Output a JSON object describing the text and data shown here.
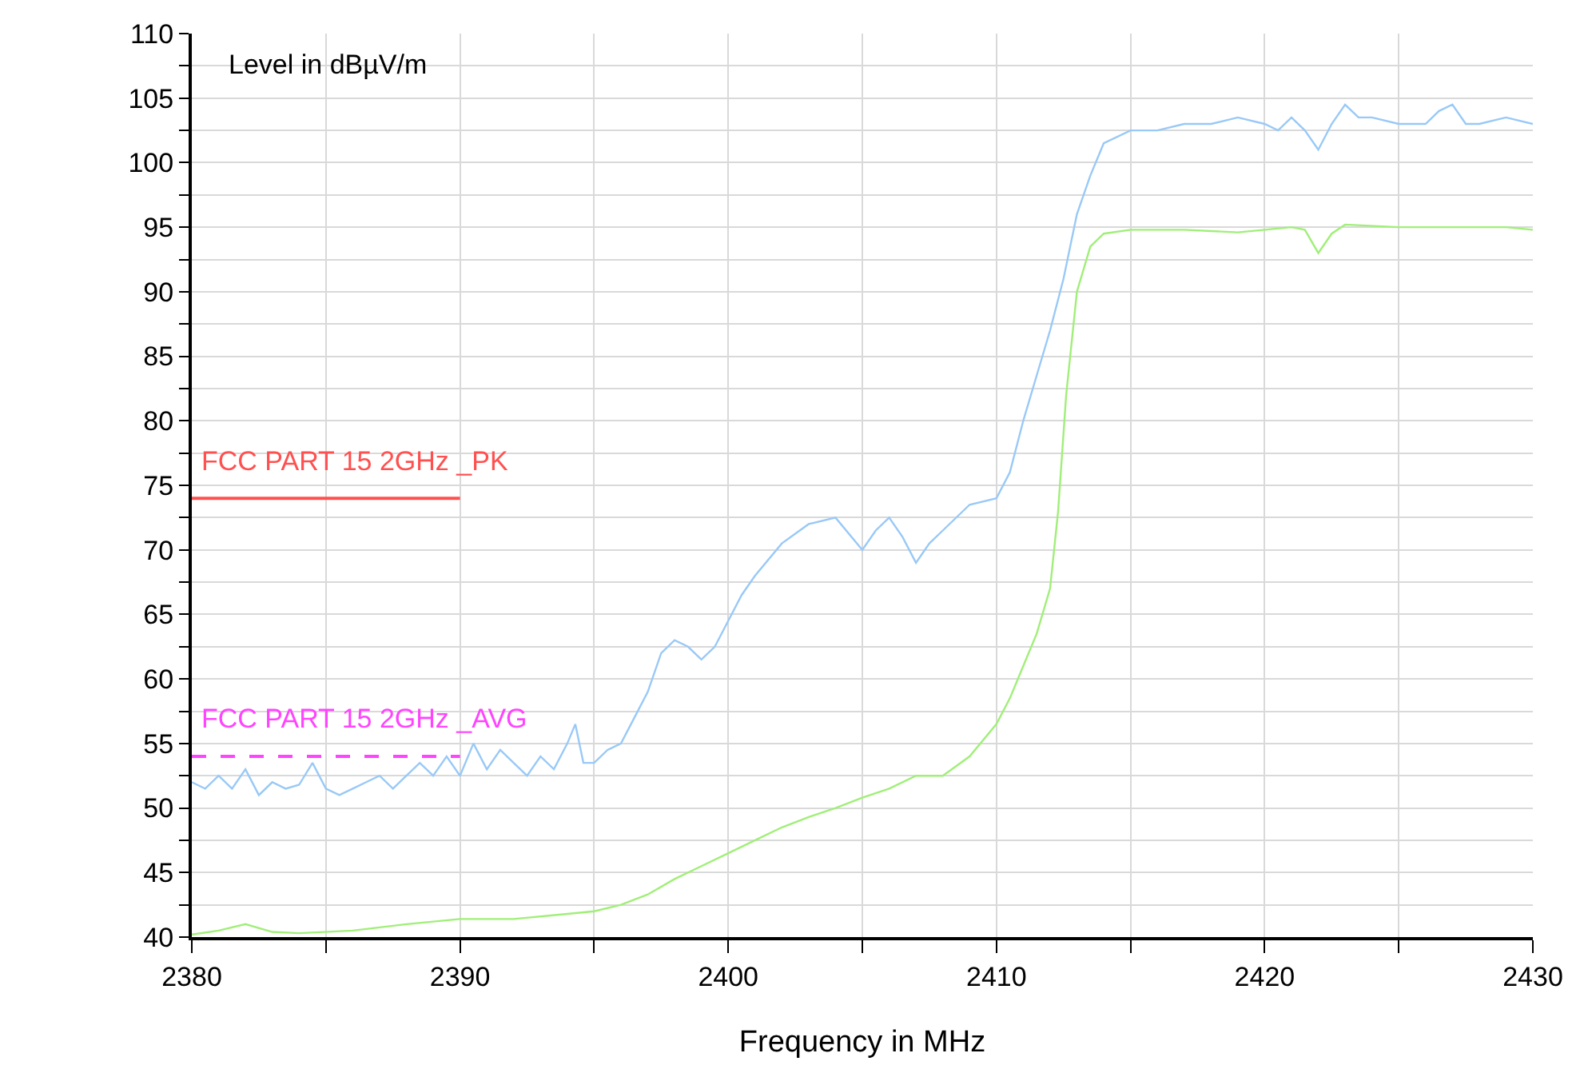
{
  "chart_data": {
    "type": "line",
    "xlabel": "Frequency in MHz",
    "ylabel": "Level in dBµV/m",
    "xlim": [
      2380,
      2430
    ],
    "xticks": [
      2380,
      {
        "value": 2385,
        "label": null
      },
      2390,
      {
        "value": 2395,
        "label": null
      },
      2400,
      {
        "value": 2405,
        "label": null
      },
      2410,
      {
        "value": 2415,
        "label": null
      },
      2420,
      {
        "value": 2425,
        "label": null
      },
      2430
    ],
    "ylim": [
      40,
      110
    ],
    "yticks": [
      40,
      {
        "value": 42.5,
        "label": null
      },
      45,
      {
        "value": 47.5,
        "label": null
      },
      50,
      {
        "value": 52.5,
        "label": null
      },
      55,
      {
        "value": 57.5,
        "label": null
      },
      60,
      {
        "value": 62.5,
        "label": null
      },
      65,
      {
        "value": 67.5,
        "label": null
      },
      70,
      {
        "value": 72.5,
        "label": null
      },
      75,
      {
        "value": 77.5,
        "label": null
      },
      80,
      {
        "value": 82.5,
        "label": null
      },
      85,
      {
        "value": 87.5,
        "label": null
      },
      90,
      {
        "value": 92.5,
        "label": null
      },
      95,
      {
        "value": 97.5,
        "label": null
      },
      100,
      {
        "value": 102.5,
        "label": null
      },
      105,
      {
        "value": 107.5,
        "label": null
      },
      110
    ],
    "grid": true,
    "legend": false,
    "marker": "none",
    "series": [
      {
        "color": "#99c9f7",
        "x": [
          2380,
          2380.5,
          2381,
          2381.5,
          2382,
          2382.5,
          2383,
          2383.5,
          2384,
          2384.5,
          2385,
          2385.5,
          2386,
          2386.5,
          2387,
          2387.5,
          2388,
          2388.5,
          2389,
          2389.5,
          2390,
          2390.5,
          2391,
          2391.5,
          2392,
          2392.5,
          2393,
          2393.5,
          2394,
          2394.3,
          2394.6,
          2395,
          2395.5,
          2396,
          2396.5,
          2397,
          2397.5,
          2398,
          2398.5,
          2399,
          2399.5,
          2400,
          2400.5,
          2401,
          2402,
          2403,
          2404,
          2405,
          2405.5,
          2406,
          2406.5,
          2407,
          2407.5,
          2408,
          2409,
          2410,
          2410.5,
          2411,
          2411.5,
          2412,
          2412.5,
          2413,
          2413.5,
          2414,
          2415,
          2416,
          2417,
          2418,
          2419,
          2420,
          2420.5,
          2421,
          2421.5,
          2422,
          2422.5,
          2423,
          2423.5,
          2424,
          2425,
          2426,
          2426.5,
          2427,
          2427.5,
          2428,
          2429,
          2430
        ],
        "values": [
          52,
          51.5,
          52.5,
          51.5,
          53,
          51,
          52,
          51.5,
          51.8,
          53.5,
          51.5,
          51,
          51.5,
          52,
          52.5,
          51.5,
          52.5,
          53.5,
          52.5,
          54,
          52.5,
          55,
          53,
          54.5,
          53.5,
          52.5,
          54,
          53,
          55,
          56.5,
          53.5,
          53.5,
          54.5,
          55,
          57,
          59,
          62,
          63,
          62.5,
          61.5,
          62.5,
          64.5,
          66.5,
          68,
          70.5,
          72,
          72.5,
          70,
          71.5,
          72.5,
          71,
          69,
          70.5,
          71.5,
          73.5,
          74,
          76,
          80,
          83.5,
          87,
          91,
          96,
          99,
          101.5,
          102.5,
          102.5,
          103,
          103,
          103.5,
          103,
          102.5,
          103.5,
          102.5,
          101,
          103,
          104.5,
          103.5,
          103.5,
          103,
          103,
          104,
          104.5,
          103,
          103,
          103.5,
          103
        ]
      },
      {
        "color": "#a0ef78",
        "x": [
          2380,
          2381,
          2382,
          2383,
          2384,
          2386,
          2388,
          2390,
          2392,
          2394,
          2395,
          2396,
          2397,
          2398,
          2399,
          2400,
          2401,
          2402,
          2403,
          2404,
          2405,
          2406,
          2407,
          2408,
          2409,
          2410,
          2410.5,
          2411,
          2411.5,
          2412,
          2412.3,
          2412.6,
          2413,
          2413.5,
          2414,
          2415,
          2417,
          2419,
          2420,
          2421,
          2421.5,
          2422,
          2422.5,
          2423,
          2425,
          2427,
          2429,
          2430
        ],
        "values": [
          40.2,
          40.5,
          41,
          40.4,
          40.3,
          40.5,
          41,
          41.4,
          41.4,
          41.8,
          42,
          42.5,
          43.3,
          44.5,
          45.5,
          46.5,
          47.5,
          48.5,
          49.3,
          50,
          50.8,
          51.5,
          52.5,
          52.5,
          54,
          56.5,
          58.5,
          61,
          63.5,
          67,
          73,
          82,
          90,
          93.5,
          94.5,
          94.8,
          94.8,
          94.6,
          94.8,
          95,
          94.8,
          93,
          94.5,
          95.2,
          95,
          95,
          95,
          94.8
        ]
      },
      {
        "name": "FCC PART 15 2GHz _PK",
        "color": "#ff5050",
        "x": [
          2380,
          2390
        ],
        "values": [
          74,
          74
        ],
        "line_style": "solid"
      },
      {
        "name": "FCC PART 15 2GHz _AVG",
        "color": "#ff44ff",
        "x": [
          2380,
          2390
        ],
        "values": [
          54,
          54
        ],
        "line_style": "dashed"
      }
    ]
  }
}
